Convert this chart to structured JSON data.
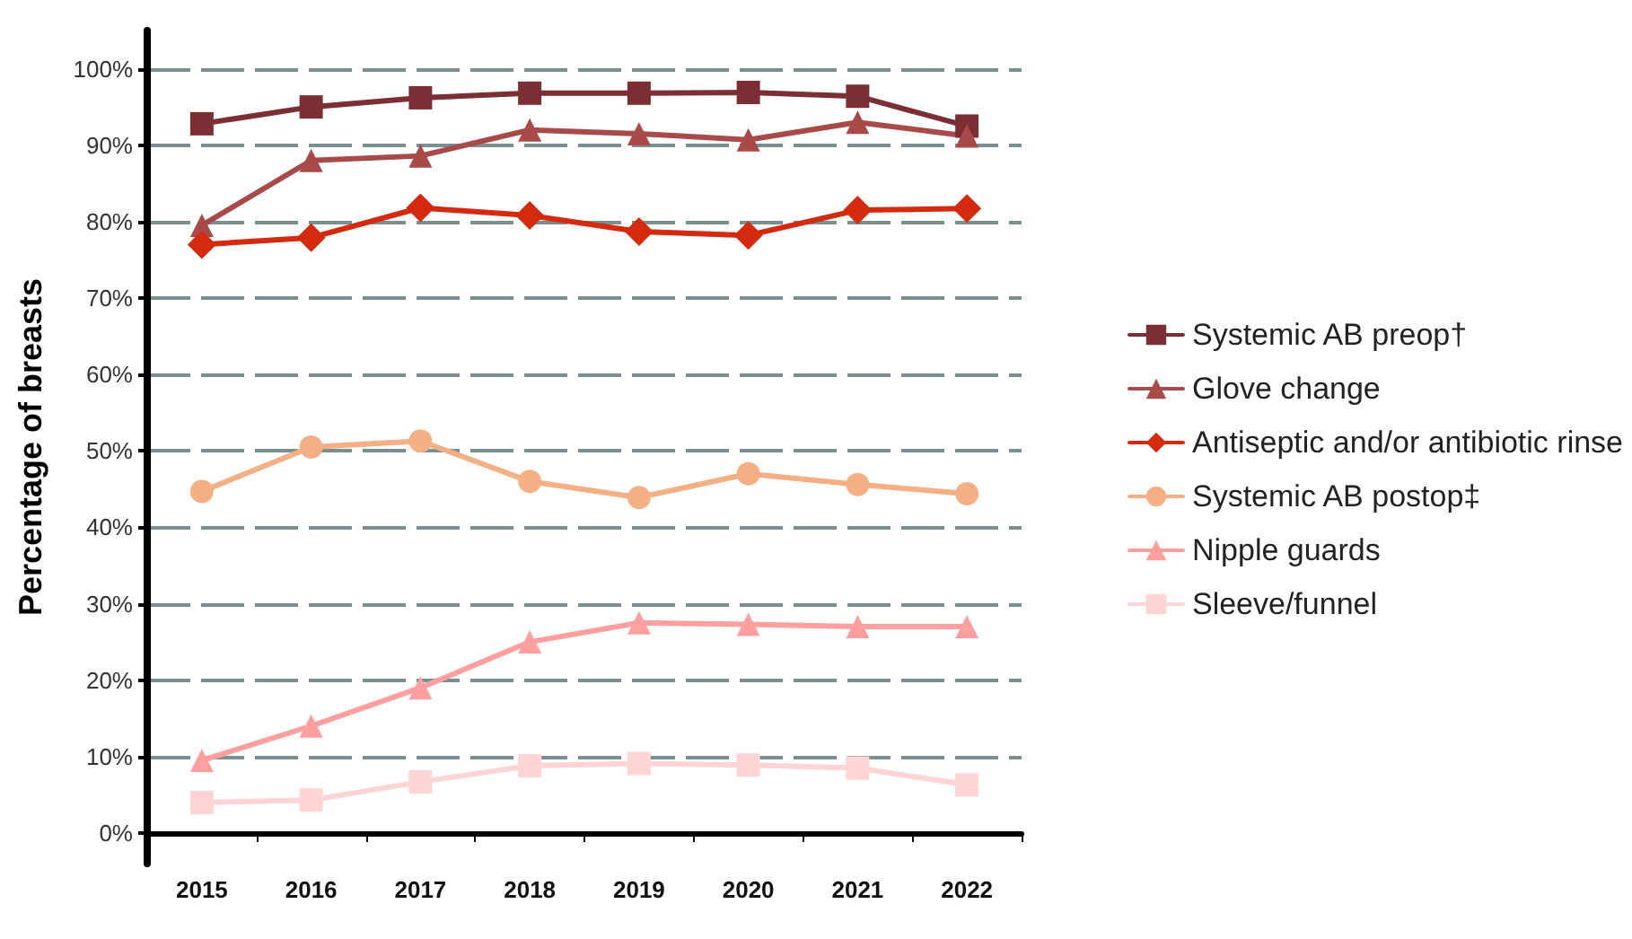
{
  "chart_data": {
    "type": "line",
    "ylabel": "Percentage of breasts",
    "categories": [
      "2015",
      "2016",
      "2017",
      "2018",
      "2019",
      "2020",
      "2021",
      "2022"
    ],
    "series": [
      {
        "name": "Systemic AB preop†",
        "color": "#7b2f35",
        "marker": "square",
        "values": [
          92.8,
          95,
          96.2,
          96.8,
          96.8,
          96.9,
          96.4,
          92.5
        ]
      },
      {
        "name": "Glove change",
        "color": "#a84a4a",
        "marker": "triangle",
        "values": [
          79.5,
          88,
          88.6,
          92,
          91.5,
          90.7,
          93,
          91.2
        ]
      },
      {
        "name": "Antiseptic and/or antibiotic rinse",
        "color": "#d42a10",
        "marker": "diamond",
        "values": [
          77,
          77.9,
          81.8,
          80.8,
          78.7,
          78.2,
          81.5,
          81.7
        ]
      },
      {
        "name": "Systemic AB postop‡",
        "color": "#f4b084",
        "marker": "circle",
        "values": [
          44.7,
          50.5,
          51.3,
          46,
          43.9,
          47,
          45.6,
          44.4
        ]
      },
      {
        "name": "Nipple guards",
        "color": "#ff9f9f",
        "marker": "triangle",
        "values": [
          9.5,
          14,
          19,
          25,
          27.5,
          27.3,
          27,
          27
        ]
      },
      {
        "name": "Sleeve/funnel",
        "color": "#ffd4d4",
        "marker": "square",
        "values": [
          4,
          4.3,
          6.7,
          8.8,
          9.1,
          8.9,
          8.5,
          6.3
        ]
      }
    ],
    "ylim": [
      -4,
      105
    ],
    "yticks": [
      {
        "value": 0,
        "label": "0%"
      },
      {
        "value": 10,
        "label": "10%"
      },
      {
        "value": 20,
        "label": "20%"
      },
      {
        "value": 30,
        "label": "30%"
      },
      {
        "value": 40,
        "label": "40%"
      },
      {
        "value": 50,
        "label": "50%"
      },
      {
        "value": 60,
        "label": "60%"
      },
      {
        "value": 70,
        "label": "70%"
      },
      {
        "value": 80,
        "label": "80%"
      },
      {
        "value": 90,
        "label": "90%"
      },
      {
        "value": 100,
        "label": "100%"
      }
    ],
    "grid": "y",
    "legend": "right",
    "line_style": "solid"
  }
}
